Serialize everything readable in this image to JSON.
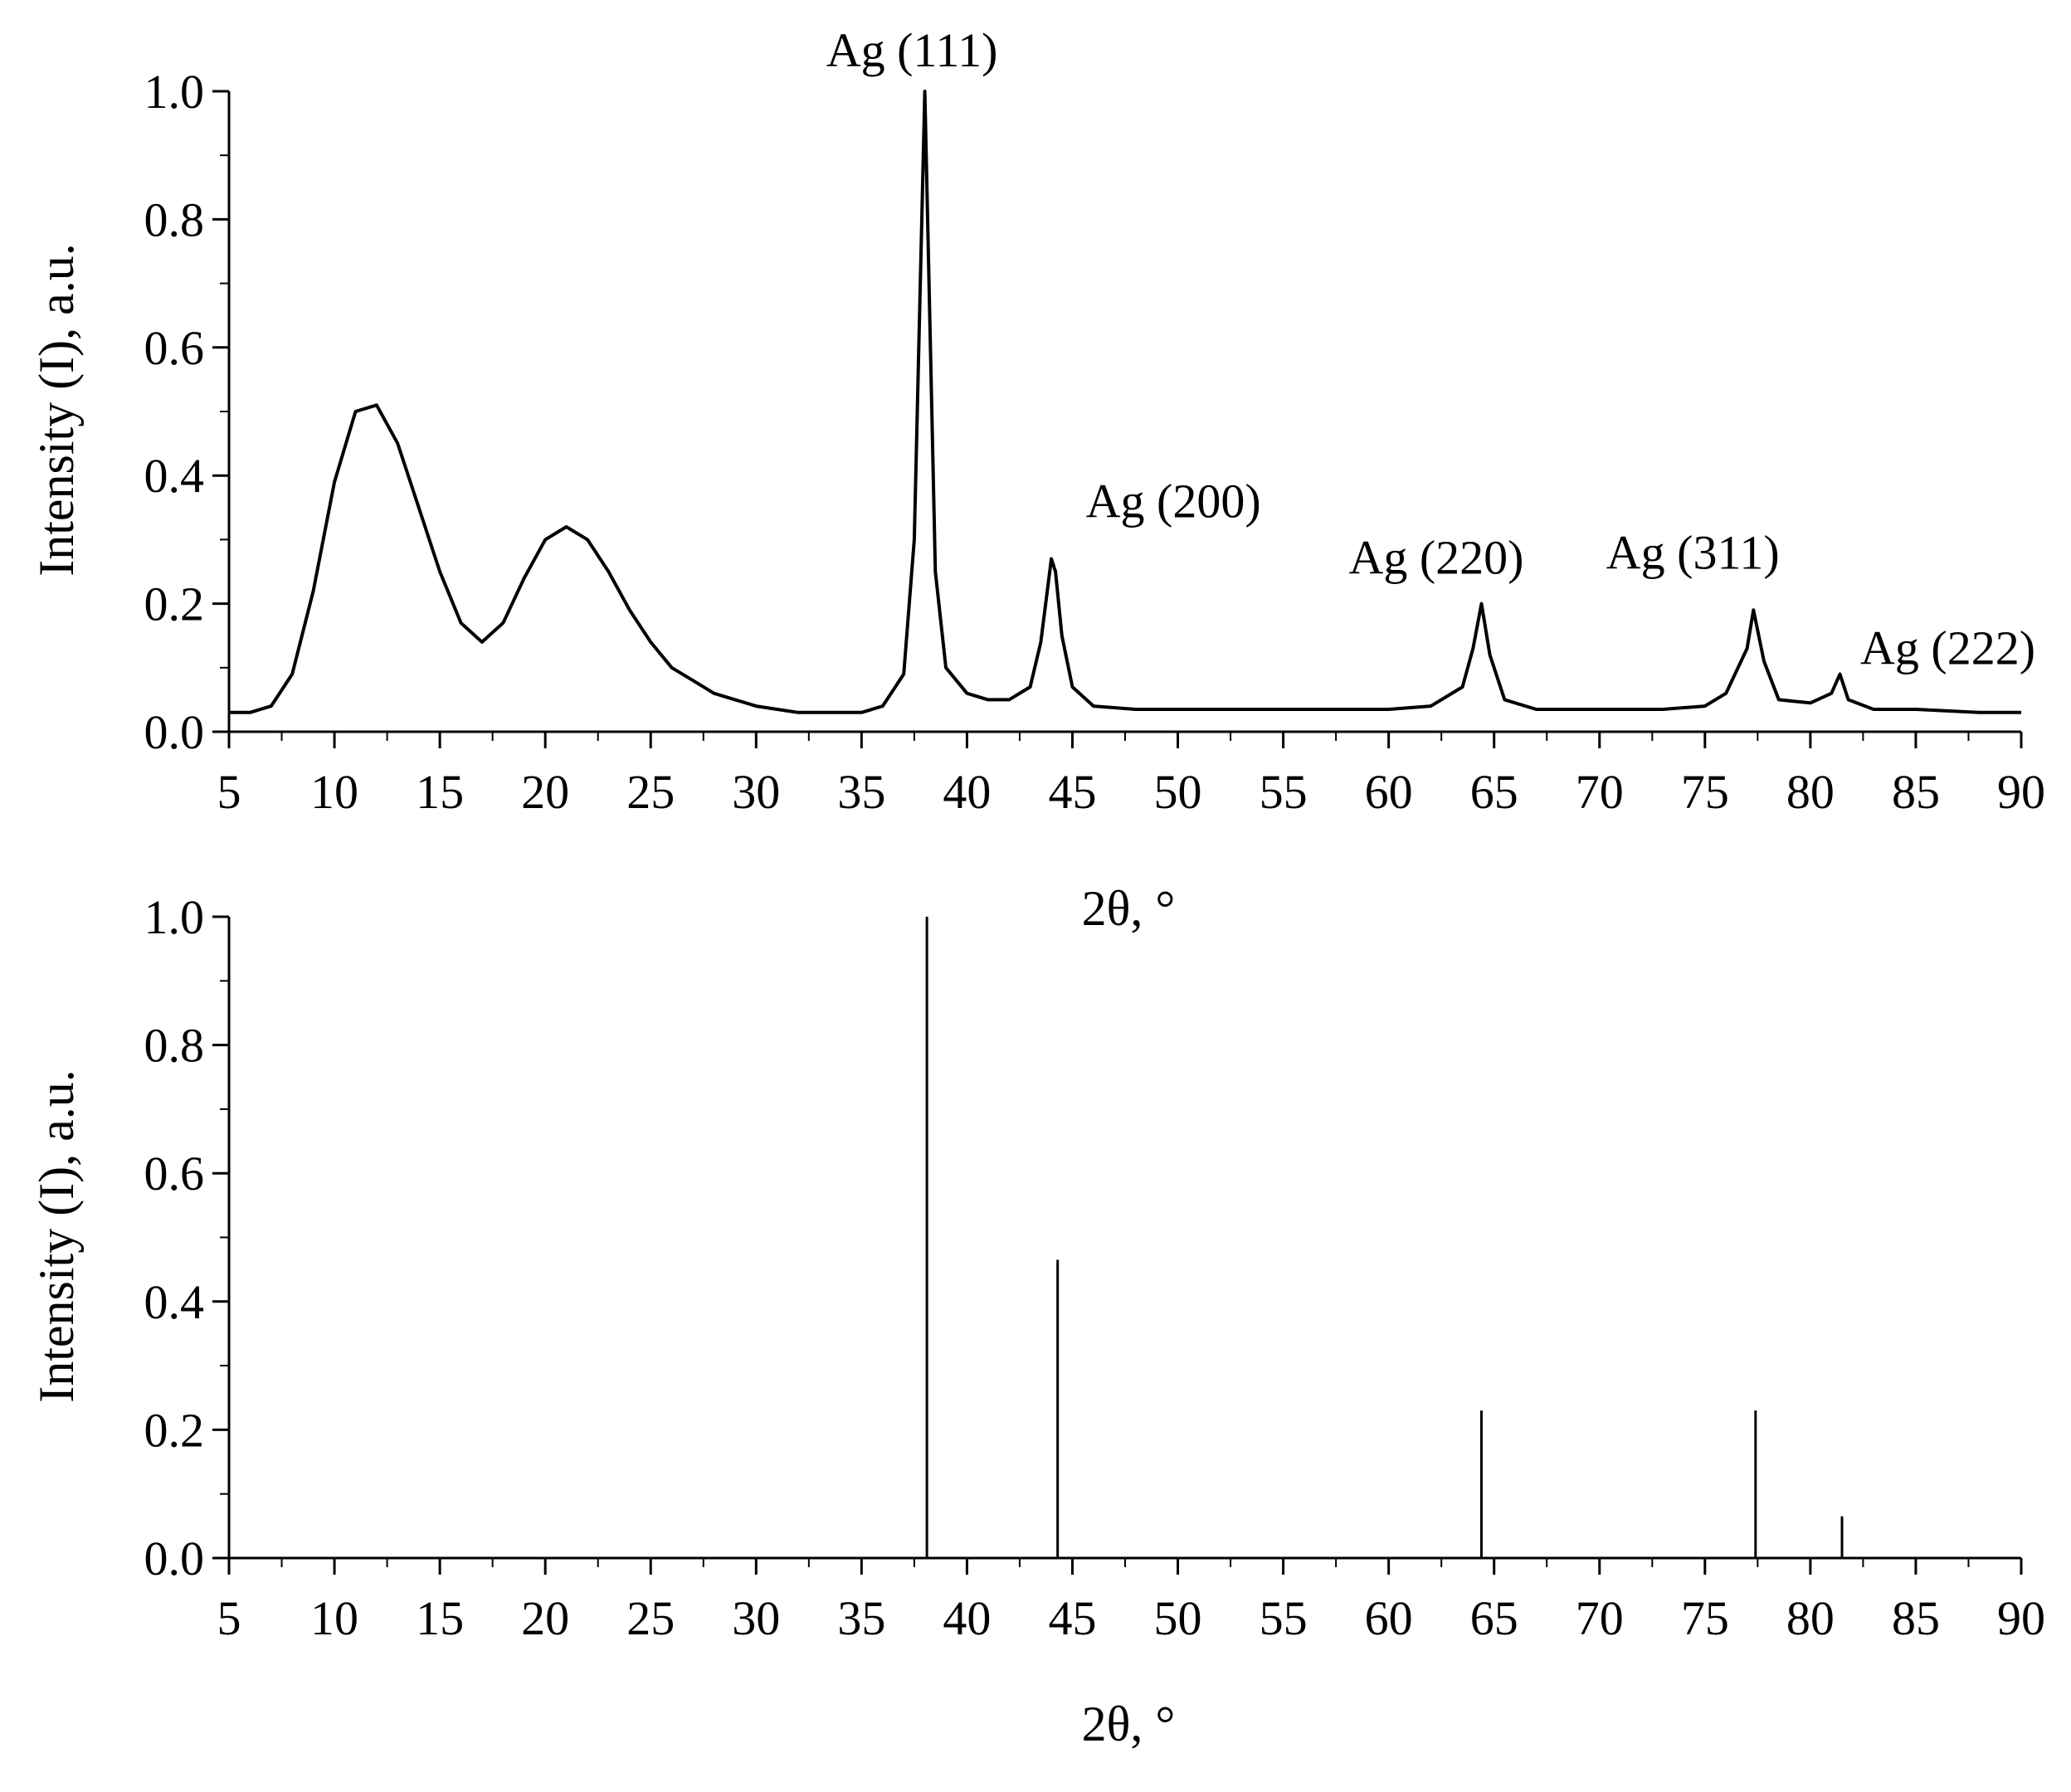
{
  "chart_data": [
    {
      "type": "line",
      "title": "",
      "xlabel": "2θ, °",
      "ylabel": "Intensity (I), a.u.",
      "xlim": [
        5,
        90
      ],
      "ylim": [
        0.0,
        1.0
      ],
      "x_ticks": [
        "5",
        "10",
        "15",
        "20",
        "25",
        "30",
        "35",
        "40",
        "45",
        "50",
        "55",
        "60",
        "65",
        "70",
        "75",
        "80",
        "85",
        "90"
      ],
      "y_ticks": [
        "0.0",
        "0.2",
        "0.4",
        "0.6",
        "0.8",
        "1.0"
      ],
      "grid": false,
      "legend": "none",
      "line_color": "#000000",
      "series": [
        {
          "x": [
            5,
            6,
            7,
            8,
            9,
            10,
            11,
            12,
            13,
            14,
            15,
            16,
            17,
            18,
            19,
            20,
            21,
            22,
            23,
            24,
            25,
            26,
            27,
            28,
            29,
            30,
            31,
            32,
            33,
            34,
            35,
            36,
            37,
            37.5,
            38,
            38.5,
            39,
            40,
            41,
            42,
            43,
            43.5,
            44,
            44.2,
            44.5,
            45,
            46,
            48,
            50,
            52,
            55,
            58,
            60,
            62,
            63.5,
            64,
            64.4,
            64.8,
            65.5,
            67,
            70,
            73,
            75,
            76,
            77,
            77.3,
            77.8,
            78.5,
            80,
            81,
            81.4,
            81.8,
            83,
            85,
            88,
            90
          ],
          "values": [
            0.03,
            0.03,
            0.04,
            0.09,
            0.22,
            0.39,
            0.5,
            0.51,
            0.45,
            0.35,
            0.25,
            0.17,
            0.14,
            0.17,
            0.24,
            0.3,
            0.32,
            0.3,
            0.25,
            0.19,
            0.14,
            0.1,
            0.08,
            0.06,
            0.05,
            0.04,
            0.035,
            0.03,
            0.03,
            0.03,
            0.03,
            0.04,
            0.09,
            0.3,
            1.0,
            0.25,
            0.1,
            0.06,
            0.05,
            0.05,
            0.07,
            0.14,
            0.27,
            0.25,
            0.15,
            0.07,
            0.04,
            0.035,
            0.035,
            0.035,
            0.035,
            0.035,
            0.035,
            0.04,
            0.07,
            0.13,
            0.2,
            0.12,
            0.05,
            0.035,
            0.035,
            0.035,
            0.04,
            0.06,
            0.13,
            0.19,
            0.11,
            0.05,
            0.045,
            0.06,
            0.09,
            0.05,
            0.035,
            0.035,
            0.03,
            0.03
          ]
        }
      ],
      "annotations": [
        {
          "text": "Ag (111)",
          "x": 38.1,
          "y": 1.0
        },
        {
          "text": "Ag (200)",
          "x": 44.3,
          "y": 0.27
        },
        {
          "text": "Ag (220)",
          "x": 64.4,
          "y": 0.2
        },
        {
          "text": "Ag (311)",
          "x": 77.4,
          "y": 0.19
        },
        {
          "text": "Ag (222)",
          "x": 81.5,
          "y": 0.09
        }
      ]
    },
    {
      "type": "bar",
      "title": "",
      "xlabel": "2θ, °",
      "ylabel": "Intensity (I), a.u.",
      "xlim": [
        5,
        90
      ],
      "ylim": [
        0.0,
        1.0
      ],
      "x_ticks": [
        "5",
        "10",
        "15",
        "20",
        "25",
        "30",
        "35",
        "40",
        "45",
        "50",
        "55",
        "60",
        "65",
        "70",
        "75",
        "80",
        "85",
        "90"
      ],
      "y_ticks": [
        "0.0",
        "0.2",
        "0.4",
        "0.6",
        "0.8",
        "1.0"
      ],
      "grid": false,
      "legend": "none",
      "bar_style": "stick",
      "line_color": "#000000",
      "x": [
        38.1,
        44.3,
        64.4,
        77.4,
        81.5
      ],
      "values": [
        1.0,
        0.465,
        0.23,
        0.23,
        0.065
      ]
    }
  ]
}
